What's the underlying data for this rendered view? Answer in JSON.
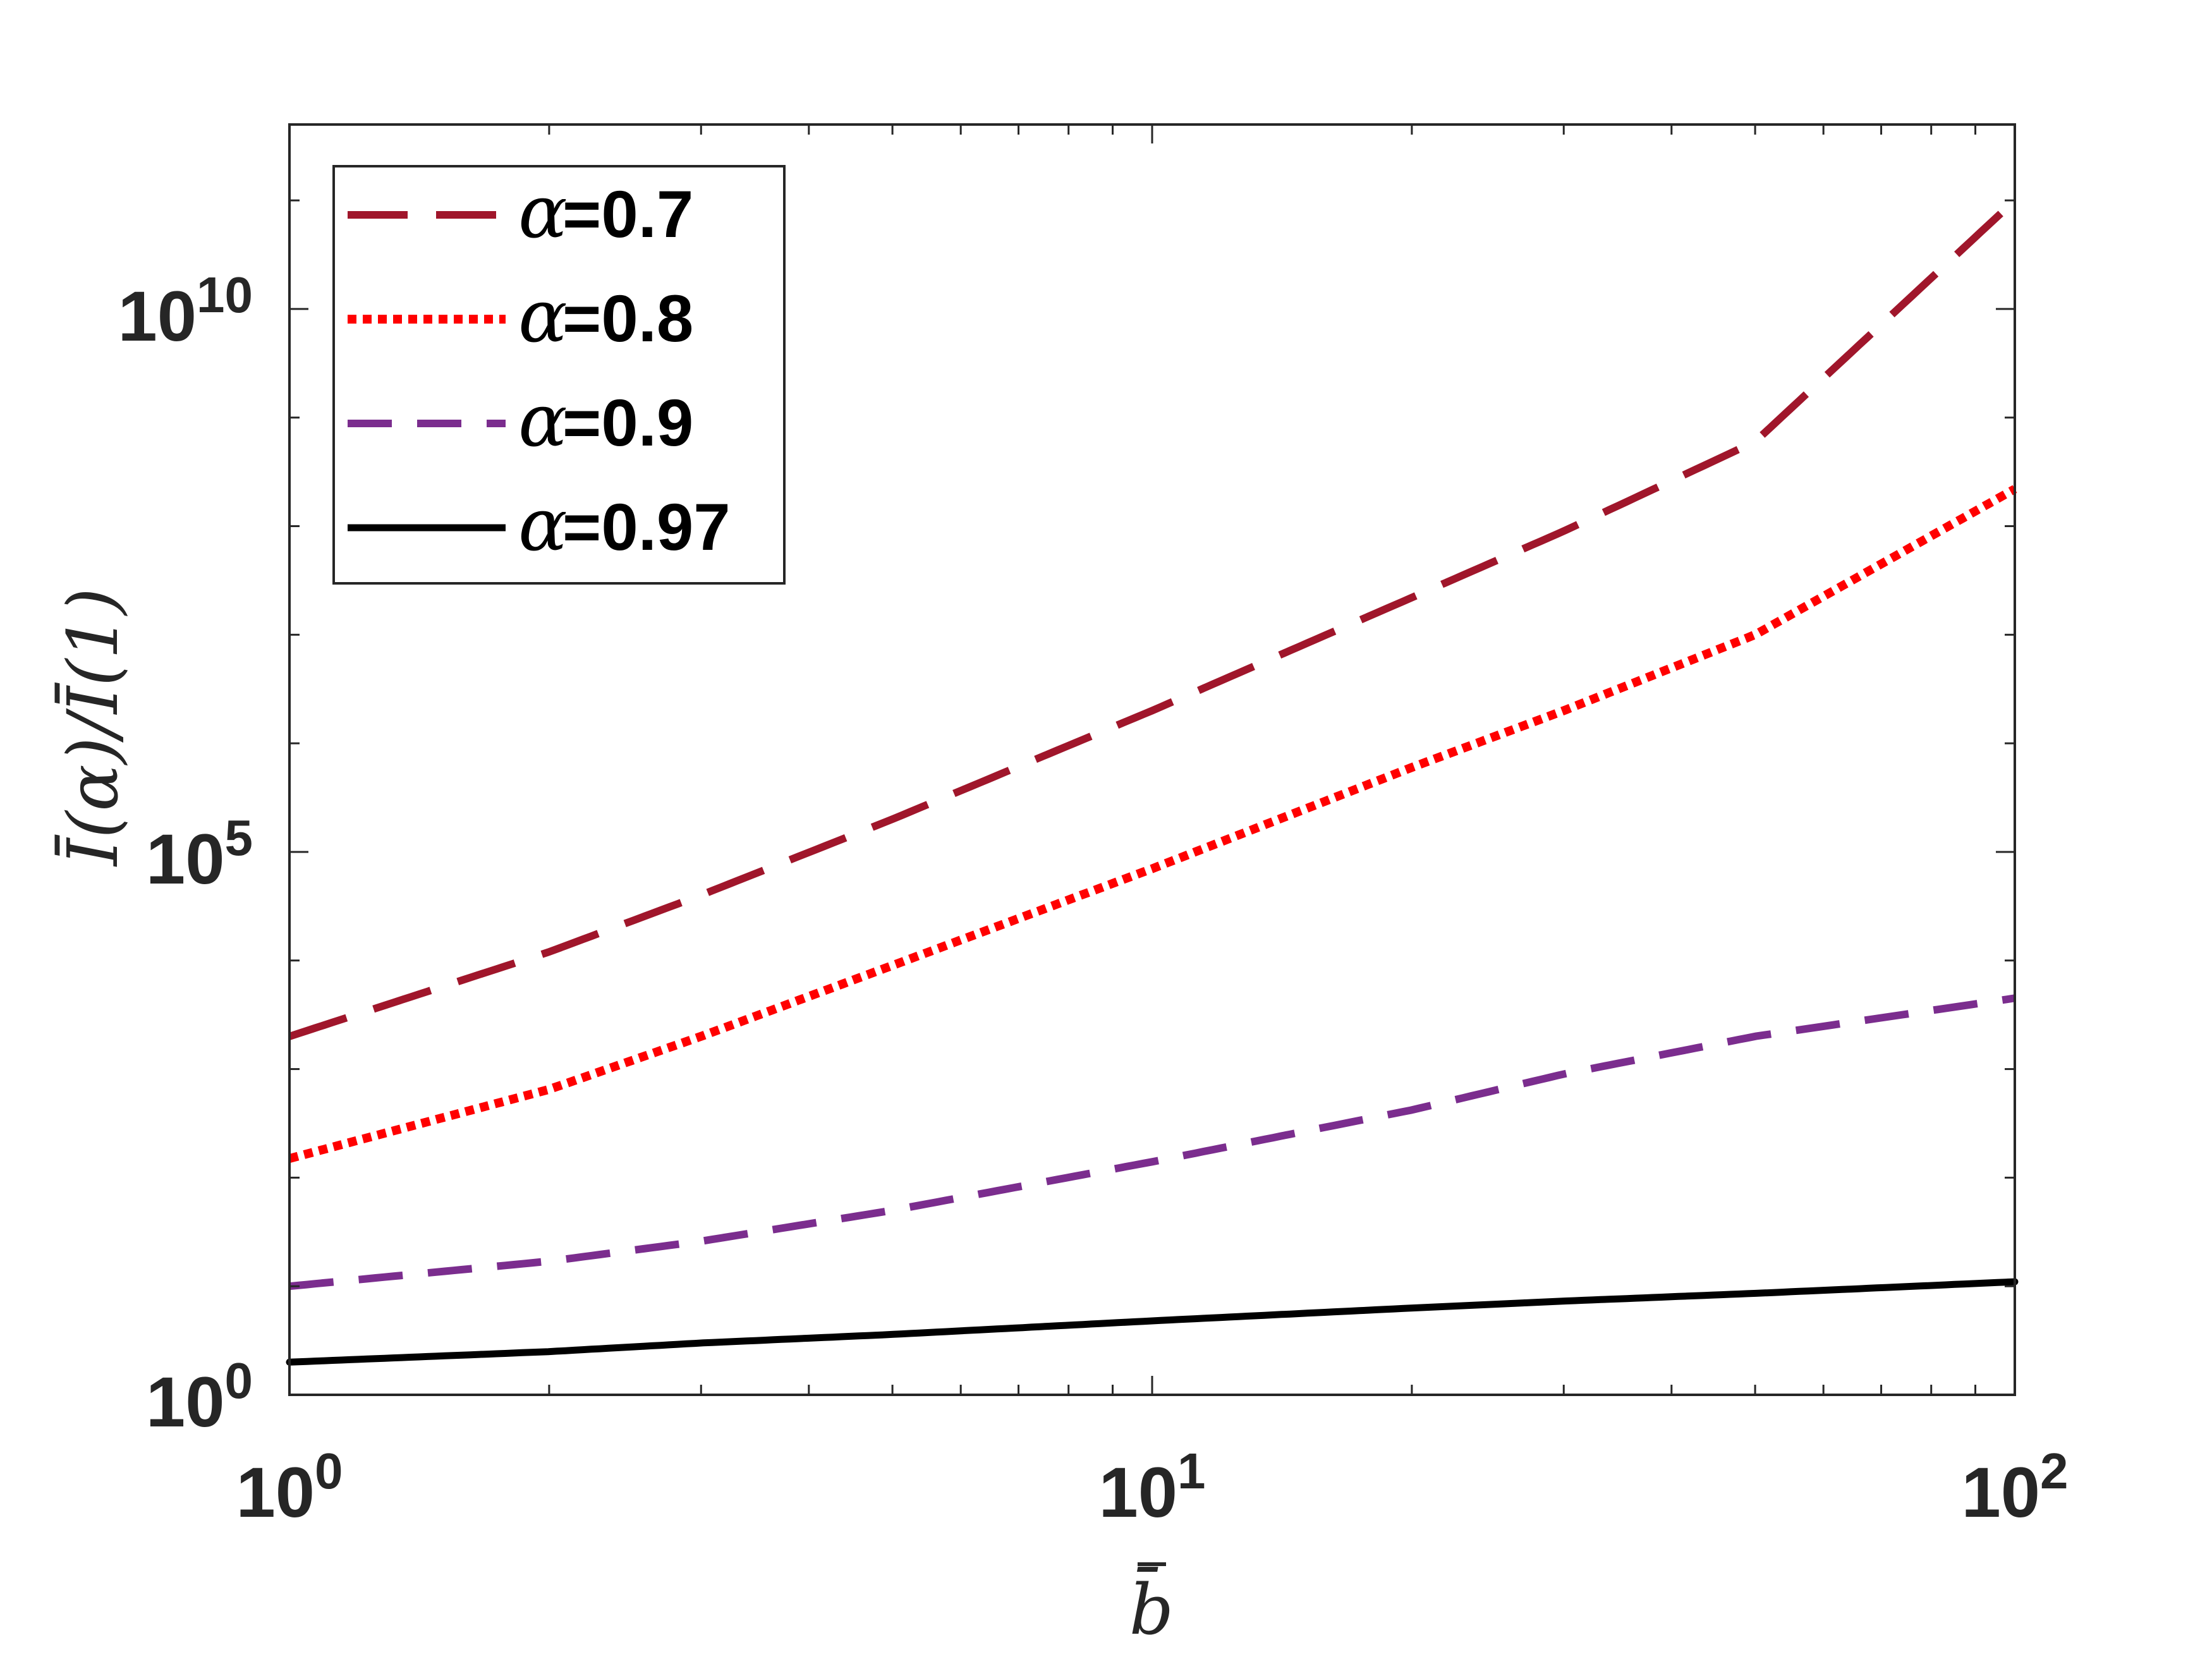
{
  "chart_data": {
    "type": "line",
    "xscale": "log",
    "yscale": "log",
    "xlim": [
      1,
      100
    ],
    "ylim": [
      1,
      500000000000.0
    ],
    "xlabel": "b̄",
    "ylabel": "Ī(α)/Ī(1)",
    "xticks": [
      {
        "value": 1,
        "base": "10",
        "exp": "0"
      },
      {
        "value": 10,
        "base": "10",
        "exp": "1"
      },
      {
        "value": 100,
        "base": "10",
        "exp": "2"
      }
    ],
    "yticks": [
      {
        "value": 1,
        "base": "10",
        "exp": "0"
      },
      {
        "value": 100000,
        "base": "10",
        "exp": "5"
      },
      {
        "value": 10000000000,
        "base": "10",
        "exp": "10"
      }
    ],
    "grid": false,
    "legend_position": "top-left",
    "series": [
      {
        "name": "=0.7",
        "symbol": "α",
        "color": "#A0162B",
        "dash": "dashed-long",
        "x": [
          1,
          2,
          3,
          5,
          10,
          20,
          30,
          50,
          100
        ],
        "y": [
          2000.0,
          12000.0,
          40000.0,
          200000.0,
          2000000.0,
          22000000.0,
          90000000.0,
          600000000.0,
          100000000000.0
        ]
      },
      {
        "name": "=0.8",
        "symbol": "α",
        "color": "#FF0000",
        "dash": "dotted",
        "x": [
          1,
          2,
          3,
          5,
          10,
          20,
          30,
          50,
          100
        ],
        "y": [
          150,
          650,
          2000,
          9000,
          70000.0,
          600000.0,
          2000000.0,
          10000000.0,
          220000000.0
        ]
      },
      {
        "name": "=0.9",
        "symbol": "α",
        "color": "#7B2D8E",
        "dash": "dashed",
        "x": [
          1,
          2,
          3,
          5,
          10,
          20,
          30,
          50,
          100
        ],
        "y": [
          10,
          17,
          26,
          50,
          140,
          420,
          900,
          2000,
          4500
        ]
      },
      {
        "name": "=0.97",
        "symbol": "α",
        "color": "#000000",
        "dash": "solid",
        "x": [
          1,
          2,
          3,
          5,
          10,
          20,
          30,
          50,
          100
        ],
        "y": [
          2.0,
          2.5,
          3.0,
          3.6,
          4.8,
          6.3,
          7.3,
          8.6,
          11
        ]
      }
    ]
  }
}
